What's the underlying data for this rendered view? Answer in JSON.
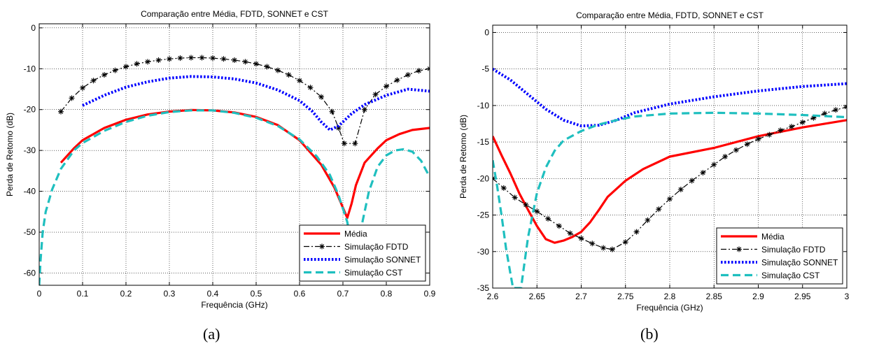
{
  "panels": [
    "(a)",
    "(b)"
  ],
  "chart_data": [
    {
      "type": "line",
      "title": "Comparação entre Média, FDTD, SONNET e CST",
      "xlabel": "Frequência (GHz)",
      "ylabel": "Perda de Retomo (dB)",
      "xlim": [
        0,
        0.9
      ],
      "ylim": [
        -63,
        1
      ],
      "xticks": [
        0,
        0.1,
        0.2,
        0.3,
        0.4,
        0.5,
        0.6,
        0.7,
        0.8,
        0.9
      ],
      "xtick_labels": [
        "0",
        "0.1",
        "0.2",
        "0.3",
        "0.4",
        "0.5",
        "0.6",
        "0.7",
        "0.8",
        "0.9"
      ],
      "yticks": [
        0,
        -10,
        -20,
        -30,
        -40,
        -50,
        -60
      ],
      "ytick_labels": [
        "0",
        "-10",
        "-20",
        "-30",
        "-40",
        "-50",
        "-60"
      ],
      "grid": true,
      "legend_position": "bottom-right",
      "series": [
        {
          "name": "Média",
          "color": "#ff0000",
          "style": "solid",
          "points": [
            [
              0.05,
              -33
            ],
            [
              0.08,
              -29.5
            ],
            [
              0.1,
              -27.5
            ],
            [
              0.15,
              -24.5
            ],
            [
              0.2,
              -22.5
            ],
            [
              0.25,
              -21.2
            ],
            [
              0.3,
              -20.5
            ],
            [
              0.35,
              -20.1
            ],
            [
              0.4,
              -20.2
            ],
            [
              0.45,
              -20.7
            ],
            [
              0.5,
              -21.8
            ],
            [
              0.55,
              -23.8
            ],
            [
              0.6,
              -27.5
            ],
            [
              0.65,
              -33.5
            ],
            [
              0.68,
              -39
            ],
            [
              0.7,
              -44
            ],
            [
              0.71,
              -46.5
            ],
            [
              0.72,
              -43
            ],
            [
              0.73,
              -38.5
            ],
            [
              0.75,
              -33
            ],
            [
              0.78,
              -29.5
            ],
            [
              0.8,
              -27.5
            ],
            [
              0.83,
              -26
            ],
            [
              0.86,
              -25
            ],
            [
              0.9,
              -24.5
            ]
          ]
        },
        {
          "name": "Simulação FDTD",
          "color": "#000000",
          "style": "dashdot",
          "marker": "star",
          "points": [
            [
              0.05,
              -20.5
            ],
            [
              0.075,
              -17.2
            ],
            [
              0.1,
              -14.7
            ],
            [
              0.125,
              -12.9
            ],
            [
              0.15,
              -11.5
            ],
            [
              0.175,
              -10.4
            ],
            [
              0.2,
              -9.5
            ],
            [
              0.225,
              -8.8
            ],
            [
              0.25,
              -8.3
            ],
            [
              0.275,
              -7.9
            ],
            [
              0.3,
              -7.6
            ],
            [
              0.325,
              -7.4
            ],
            [
              0.35,
              -7.3
            ],
            [
              0.375,
              -7.3
            ],
            [
              0.4,
              -7.4
            ],
            [
              0.425,
              -7.6
            ],
            [
              0.45,
              -7.9
            ],
            [
              0.475,
              -8.3
            ],
            [
              0.5,
              -8.8
            ],
            [
              0.525,
              -9.5
            ],
            [
              0.55,
              -10.4
            ],
            [
              0.575,
              -11.5
            ],
            [
              0.6,
              -12.9
            ],
            [
              0.625,
              -14.6
            ],
            [
              0.65,
              -16.9
            ],
            [
              0.675,
              -20.5
            ],
            [
              0.69,
              -24.5
            ],
            [
              0.703,
              -28.3
            ],
            [
              0.728,
              -28.3
            ],
            [
              0.75,
              -20
            ],
            [
              0.775,
              -16.3
            ],
            [
              0.8,
              -14.3
            ],
            [
              0.825,
              -12.8
            ],
            [
              0.85,
              -11.5
            ],
            [
              0.875,
              -10.5
            ],
            [
              0.9,
              -10
            ]
          ]
        },
        {
          "name": "Simulação SONNET",
          "color": "#0000ff",
          "style": "dotted",
          "points": [
            [
              0.1,
              -19
            ],
            [
              0.15,
              -16.5
            ],
            [
              0.2,
              -14.5
            ],
            [
              0.25,
              -13.2
            ],
            [
              0.3,
              -12.3
            ],
            [
              0.35,
              -11.9
            ],
            [
              0.4,
              -12
            ],
            [
              0.45,
              -12.5
            ],
            [
              0.5,
              -13.5
            ],
            [
              0.55,
              -15.2
            ],
            [
              0.6,
              -17.8
            ],
            [
              0.63,
              -20.5
            ],
            [
              0.65,
              -23
            ],
            [
              0.67,
              -25
            ],
            [
              0.69,
              -24
            ],
            [
              0.72,
              -21
            ],
            [
              0.75,
              -18.8
            ],
            [
              0.8,
              -16.5
            ],
            [
              0.85,
              -15
            ],
            [
              0.9,
              -15.5
            ]
          ]
        },
        {
          "name": "Simulação CST",
          "color": "#1fbfbf",
          "style": "dashed",
          "points": [
            [
              0,
              -63
            ],
            [
              0.003,
              -57
            ],
            [
              0.008,
              -50
            ],
            [
              0.015,
              -45
            ],
            [
              0.03,
              -39.5
            ],
            [
              0.05,
              -34.5
            ],
            [
              0.08,
              -30
            ],
            [
              0.1,
              -28.2
            ],
            [
              0.15,
              -25.2
            ],
            [
              0.2,
              -23
            ],
            [
              0.25,
              -21.5
            ],
            [
              0.3,
              -20.6
            ],
            [
              0.35,
              -20.2
            ],
            [
              0.4,
              -20.2
            ],
            [
              0.45,
              -20.8
            ],
            [
              0.5,
              -22
            ],
            [
              0.55,
              -24
            ],
            [
              0.6,
              -27.3
            ],
            [
              0.64,
              -31.5
            ],
            [
              0.67,
              -36
            ],
            [
              0.69,
              -41
            ],
            [
              0.71,
              -47.5
            ],
            [
              0.72,
              -53
            ],
            [
              0.73,
              -60
            ],
            [
              0.74,
              -50
            ],
            [
              0.76,
              -40
            ],
            [
              0.78,
              -34
            ],
            [
              0.8,
              -31.2
            ],
            [
              0.82,
              -30
            ],
            [
              0.84,
              -29.7
            ],
            [
              0.86,
              -30.3
            ],
            [
              0.88,
              -32.5
            ],
            [
              0.9,
              -36.5
            ]
          ]
        }
      ]
    },
    {
      "type": "line",
      "title": "Comparação entre Média, FDTD, SONNET e CST",
      "xlabel": "Frequência (GHz)",
      "ylabel": "Perda de Retomo (dB)",
      "xlim": [
        2.6,
        3
      ],
      "ylim": [
        -35,
        1
      ],
      "xticks": [
        2.6,
        2.65,
        2.7,
        2.75,
        2.8,
        2.85,
        2.9,
        2.95,
        3
      ],
      "xtick_labels": [
        "2.6",
        "2.65",
        "2.7",
        "2.75",
        "2.8",
        "2.85",
        "2.9",
        "2.95",
        "3"
      ],
      "yticks": [
        0,
        -5,
        -10,
        -15,
        -20,
        -25,
        -30,
        -35
      ],
      "ytick_labels": [
        "0",
        "-5",
        "-10",
        "-15",
        "-20",
        "-25",
        "-30",
        "-35"
      ],
      "grid": true,
      "legend_position": "bottom-right",
      "series": [
        {
          "name": "Média",
          "color": "#ff0000",
          "style": "solid",
          "points": [
            [
              2.6,
              -14.2
            ],
            [
              2.61,
              -16.8
            ],
            [
              2.62,
              -19.3
            ],
            [
              2.63,
              -22
            ],
            [
              2.64,
              -24.3
            ],
            [
              2.65,
              -26.5
            ],
            [
              2.66,
              -28.3
            ],
            [
              2.67,
              -28.8
            ],
            [
              2.68,
              -28.5
            ],
            [
              2.69,
              -28
            ],
            [
              2.7,
              -27.3
            ],
            [
              2.71,
              -26
            ],
            [
              2.72,
              -24.3
            ],
            [
              2.73,
              -22.5
            ],
            [
              2.75,
              -20.3
            ],
            [
              2.77,
              -18.7
            ],
            [
              2.8,
              -17
            ],
            [
              2.85,
              -15.8
            ],
            [
              2.9,
              -14.2
            ],
            [
              2.95,
              -13
            ],
            [
              3,
              -12
            ]
          ]
        },
        {
          "name": "Simulação FDTD",
          "color": "#000000",
          "style": "dashdot",
          "marker": "star",
          "points": [
            [
              2.6,
              -20
            ],
            [
              2.6125,
              -21.3
            ],
            [
              2.625,
              -22.6
            ],
            [
              2.6375,
              -23.6
            ],
            [
              2.65,
              -24.5
            ],
            [
              2.6625,
              -25.5
            ],
            [
              2.675,
              -26.5
            ],
            [
              2.6875,
              -27.5
            ],
            [
              2.7,
              -28.2
            ],
            [
              2.7125,
              -28.9
            ],
            [
              2.725,
              -29.5
            ],
            [
              2.735,
              -29.7
            ],
            [
              2.75,
              -28.7
            ],
            [
              2.7625,
              -27.3
            ],
            [
              2.775,
              -25.7
            ],
            [
              2.7875,
              -24.2
            ],
            [
              2.8,
              -22.8
            ],
            [
              2.8125,
              -21.5
            ],
            [
              2.825,
              -20.3
            ],
            [
              2.8375,
              -19.2
            ],
            [
              2.85,
              -18.1
            ],
            [
              2.8625,
              -17
            ],
            [
              2.875,
              -16.1
            ],
            [
              2.8875,
              -15.3
            ],
            [
              2.9,
              -14.6
            ],
            [
              2.9125,
              -14
            ],
            [
              2.925,
              -13.4
            ],
            [
              2.9375,
              -12.9
            ],
            [
              2.95,
              -12.3
            ],
            [
              2.9625,
              -11.7
            ],
            [
              2.975,
              -11.1
            ],
            [
              2.9875,
              -10.6
            ],
            [
              3,
              -10.2
            ]
          ]
        },
        {
          "name": "Simulação SONNET",
          "color": "#0000ff",
          "style": "dotted",
          "points": [
            [
              2.6,
              -5
            ],
            [
              2.62,
              -6.5
            ],
            [
              2.64,
              -8.5
            ],
            [
              2.66,
              -10.5
            ],
            [
              2.68,
              -12
            ],
            [
              2.7,
              -12.8
            ],
            [
              2.72,
              -12.7
            ],
            [
              2.74,
              -12
            ],
            [
              2.76,
              -11
            ],
            [
              2.8,
              -9.8
            ],
            [
              2.85,
              -8.8
            ],
            [
              2.9,
              -8
            ],
            [
              2.95,
              -7.4
            ],
            [
              3,
              -7
            ]
          ]
        },
        {
          "name": "Simulação CST",
          "color": "#1fbfbf",
          "style": "dashed",
          "points": [
            [
              2.6,
              -17.5
            ],
            [
              2.605,
              -21
            ],
            [
              2.61,
              -25
            ],
            [
              2.615,
              -29.5
            ],
            [
              2.62,
              -33
            ],
            [
              2.623,
              -35
            ],
            [
              2.632,
              -35
            ],
            [
              2.636,
              -31.5
            ],
            [
              2.64,
              -28
            ],
            [
              2.645,
              -25
            ],
            [
              2.65,
              -22
            ],
            [
              2.66,
              -18.5
            ],
            [
              2.67,
              -16.2
            ],
            [
              2.68,
              -14.8
            ],
            [
              2.7,
              -13.5
            ],
            [
              2.72,
              -12.6
            ],
            [
              2.74,
              -12
            ],
            [
              2.76,
              -11.5
            ],
            [
              2.8,
              -11.1
            ],
            [
              2.85,
              -11
            ],
            [
              2.9,
              -11.1
            ],
            [
              2.95,
              -11.3
            ],
            [
              3,
              -11.6
            ]
          ]
        }
      ]
    }
  ]
}
